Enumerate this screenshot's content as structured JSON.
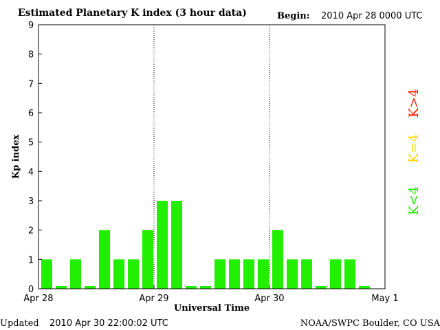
{
  "chart_data": {
    "type": "bar",
    "title": "Estimated Planetary K index (3 hour data)",
    "begin_label": "Begin:",
    "begin_value": "2010 Apr 28 0000 UTC",
    "xlabel": "Universal Time",
    "ylabel": "Kp index",
    "ylim": [
      0,
      9
    ],
    "yticks": [
      "0",
      "1",
      "2",
      "3",
      "4",
      "5",
      "6",
      "7",
      "8",
      "9"
    ],
    "xticks": [
      "Apr 28",
      "Apr 29",
      "Apr 30",
      "May 1"
    ],
    "values": [
      1,
      0,
      1,
      0,
      2,
      1,
      1,
      2,
      3,
      3,
      0,
      0,
      1,
      1,
      1,
      1,
      2,
      1,
      1,
      0,
      1,
      1,
      0
    ],
    "legend": [
      "K>4",
      "K=4",
      "K<4"
    ],
    "colors": {
      "low": "#22ee00",
      "mid": "#ffd700",
      "high": "#ff2200",
      "axis": "#000000"
    }
  },
  "footer": {
    "updated_label": "Updated",
    "updated_value": "2010 Apr 30 22:00:02 UTC",
    "source": "NOAA/SWPC Boulder, CO USA"
  }
}
